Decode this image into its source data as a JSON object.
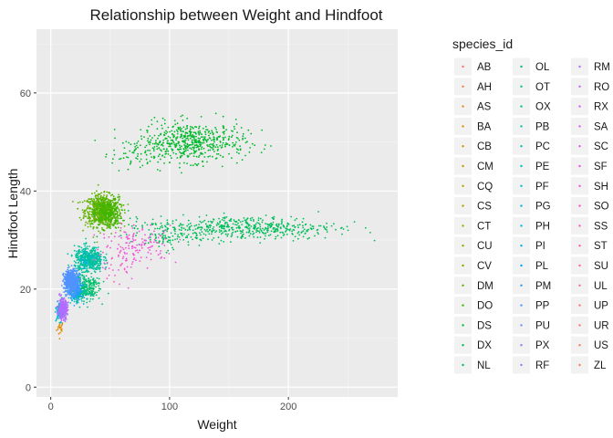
{
  "chart_data": {
    "type": "scatter",
    "title": "Relationship between Weight and Hindfoot",
    "xlabel": "Weight",
    "ylabel": "Hindfoot Length",
    "xlim": [
      -12,
      292
    ],
    "ylim": [
      -2,
      73
    ],
    "xticks": [
      0,
      100,
      200
    ],
    "yticks": [
      0,
      20,
      40,
      60
    ],
    "grid": true,
    "legend": {
      "title": "species_id",
      "placement": "right"
    },
    "series": [
      {
        "name": "AB",
        "color": "#F8766D",
        "clusters": []
      },
      {
        "name": "AH",
        "color": "#F17D51",
        "clusters": []
      },
      {
        "name": "AS",
        "color": "#E98429",
        "clusters": []
      },
      {
        "name": "BA",
        "color": "#E08B00",
        "clusters": [
          {
            "cx": 8,
            "cy": 12,
            "sx": 1.5,
            "sy": 0.8,
            "n": 20
          }
        ]
      },
      {
        "name": "CB",
        "color": "#D59100",
        "clusters": []
      },
      {
        "name": "CM",
        "color": "#CA9700",
        "clusters": []
      },
      {
        "name": "CQ",
        "color": "#BD9C00",
        "clusters": []
      },
      {
        "name": "CS",
        "color": "#AFA100",
        "clusters": []
      },
      {
        "name": "CT",
        "color": "#A0A600",
        "clusters": []
      },
      {
        "name": "CU",
        "color": "#8FAA00",
        "clusters": []
      },
      {
        "name": "CV",
        "color": "#7BAE00",
        "clusters": []
      },
      {
        "name": "DM",
        "color": "#62B200",
        "clusters": [
          {
            "cx": 43,
            "cy": 36,
            "sx": 7,
            "sy": 1.6,
            "n": 700
          }
        ]
      },
      {
        "name": "DO",
        "color": "#3DB600",
        "clusters": [
          {
            "cx": 48,
            "cy": 35.5,
            "sx": 6,
            "sy": 1.6,
            "n": 250
          }
        ]
      },
      {
        "name": "DS",
        "color": "#00B92B",
        "clusters": [
          {
            "cx": 120,
            "cy": 50,
            "sx": 22,
            "sy": 2,
            "n": 520
          },
          {
            "cx": 75,
            "cy": 47.5,
            "sx": 12,
            "sy": 1.8,
            "n": 80
          }
        ]
      },
      {
        "name": "DX",
        "color": "#00BC43",
        "clusters": []
      },
      {
        "name": "NL",
        "color": "#00BE58",
        "clusters": [
          {
            "cx": 165,
            "cy": 32.5,
            "sx": 38,
            "sy": 1.2,
            "n": 480
          },
          {
            "cx": 95,
            "cy": 31,
            "sx": 15,
            "sy": 1.4,
            "n": 100
          }
        ]
      },
      {
        "name": "OL",
        "color": "#00C06B",
        "clusters": [
          {
            "cx": 32,
            "cy": 20.5,
            "sx": 5,
            "sy": 1.4,
            "n": 140
          }
        ]
      },
      {
        "name": "OT",
        "color": "#00C17D",
        "clusters": [
          {
            "cx": 24,
            "cy": 20,
            "sx": 4,
            "sy": 1.2,
            "n": 190
          }
        ]
      },
      {
        "name": "OX",
        "color": "#00C18F",
        "clusters": []
      },
      {
        "name": "PB",
        "color": "#00C19F",
        "clusters": [
          {
            "cx": 32,
            "cy": 26,
            "sx": 6,
            "sy": 1.3,
            "n": 480
          }
        ]
      },
      {
        "name": "PC",
        "color": "#00C0AF",
        "clusters": []
      },
      {
        "name": "PE",
        "color": "#00BEBF",
        "clusters": [
          {
            "cx": 21,
            "cy": 20,
            "sx": 3,
            "sy": 1.2,
            "n": 110
          }
        ]
      },
      {
        "name": "PF",
        "color": "#00BACD",
        "clusters": [
          {
            "cx": 8,
            "cy": 15.5,
            "sx": 1.5,
            "sy": 1,
            "n": 150
          }
        ]
      },
      {
        "name": "PG",
        "color": "#00B6DA",
        "clusters": []
      },
      {
        "name": "PH",
        "color": "#00B1E7",
        "clusters": [
          {
            "cx": 30,
            "cy": 26,
            "sx": 4,
            "sy": 1,
            "n": 20
          }
        ]
      },
      {
        "name": "PI",
        "color": "#00ABF2",
        "clusters": []
      },
      {
        "name": "PL",
        "color": "#00A4FC",
        "clusters": [
          {
            "cx": 20,
            "cy": 20,
            "sx": 3,
            "sy": 1,
            "n": 15
          }
        ]
      },
      {
        "name": "PM",
        "color": "#239CFF",
        "clusters": [
          {
            "cx": 21,
            "cy": 20,
            "sx": 3,
            "sy": 1.2,
            "n": 150
          }
        ]
      },
      {
        "name": "PP",
        "color": "#5193FF",
        "clusters": [
          {
            "cx": 17,
            "cy": 21.5,
            "sx": 3,
            "sy": 1.2,
            "n": 520
          }
        ]
      },
      {
        "name": "PU",
        "color": "#7289FF",
        "clusters": []
      },
      {
        "name": "PX",
        "color": "#8C7FFF",
        "clusters": []
      },
      {
        "name": "RF",
        "color": "#A075FF",
        "clusters": []
      },
      {
        "name": "RM",
        "color": "#B26CFF",
        "clusters": [
          {
            "cx": 10,
            "cy": 16,
            "sx": 2,
            "sy": 1,
            "n": 280
          }
        ]
      },
      {
        "name": "RO",
        "color": "#C264FF",
        "clusters": []
      },
      {
        "name": "RX",
        "color": "#CF5DFF",
        "clusters": []
      },
      {
        "name": "SA",
        "color": "#DB57F9",
        "clusters": []
      },
      {
        "name": "SC",
        "color": "#E553EF",
        "clusters": []
      },
      {
        "name": "SF",
        "color": "#EE51E4",
        "clusters": [
          {
            "cx": 70,
            "cy": 27.5,
            "sx": 14,
            "sy": 2.2,
            "n": 50
          }
        ]
      },
      {
        "name": "SH",
        "color": "#F451D7",
        "clusters": [
          {
            "cx": 75,
            "cy": 29.5,
            "sx": 16,
            "sy": 2,
            "n": 90
          }
        ]
      },
      {
        "name": "SO",
        "color": "#F953C9",
        "clusters": [
          {
            "cx": 55,
            "cy": 25,
            "sx": 8,
            "sy": 2,
            "n": 25
          }
        ]
      },
      {
        "name": "SS",
        "color": "#FC57BB",
        "clusters": []
      },
      {
        "name": "ST",
        "color": "#FE5CAC",
        "clusters": []
      },
      {
        "name": "SU",
        "color": "#FF629C",
        "clusters": []
      },
      {
        "name": "UL",
        "color": "#FF698B",
        "clusters": []
      },
      {
        "name": "UP",
        "color": "#FF6F79",
        "clusters": []
      },
      {
        "name": "UR",
        "color": "#FD7566",
        "clusters": []
      },
      {
        "name": "US",
        "color": "#FA7A52",
        "clusters": []
      },
      {
        "name": "ZL",
        "color": "#F47D5E",
        "clusters": []
      }
    ]
  }
}
